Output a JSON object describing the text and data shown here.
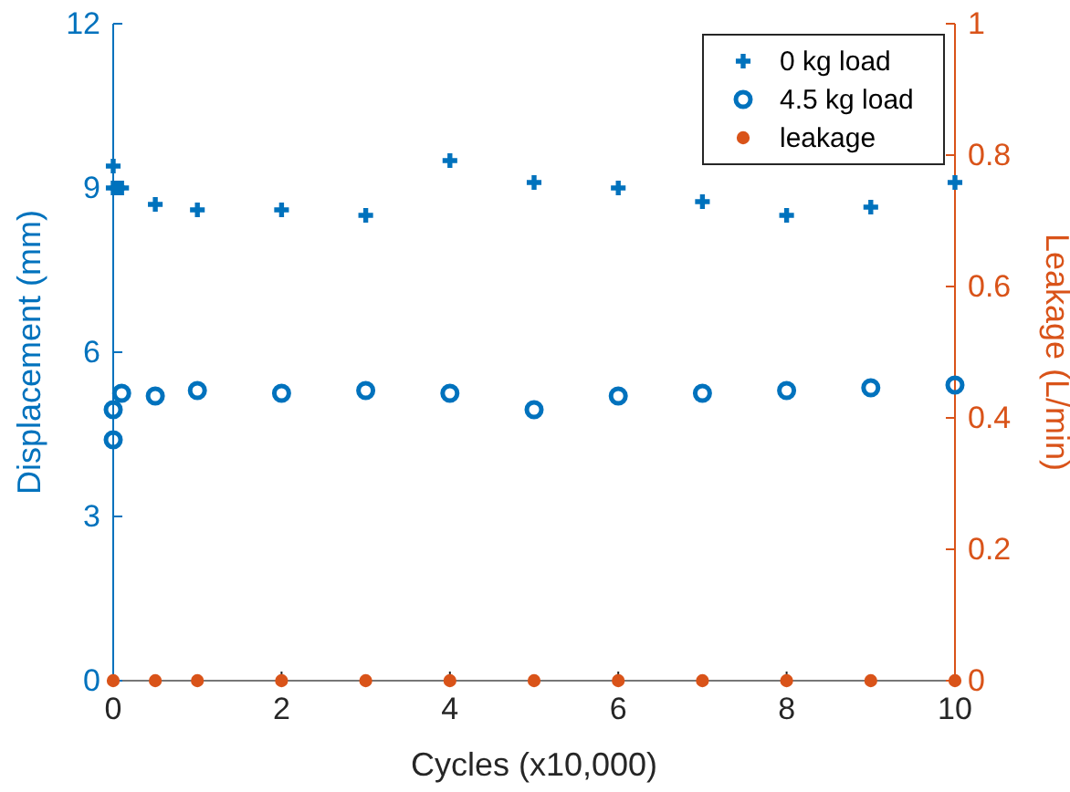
{
  "chart_data": {
    "type": "scatter",
    "xlabel": "Cycles (x10,000)",
    "ylabel": "Displacement (mm)",
    "y2label": "Leakage (L/min)",
    "xlim": [
      0,
      10
    ],
    "xticks": [
      0,
      2,
      4,
      6,
      8,
      10
    ],
    "ylim": [
      0,
      12
    ],
    "yticks": [
      0,
      3,
      6,
      9,
      12
    ],
    "y2lim": [
      0,
      1
    ],
    "y2ticks": [
      0,
      0.2,
      0.4,
      0.6,
      0.8,
      1
    ],
    "legend": "top right",
    "grid": false,
    "series": [
      {
        "name": "0 kg load",
        "color": "#0072bd",
        "marker": "cross",
        "x": [
          0,
          0,
          0.05,
          0.1,
          0.5,
          1,
          2,
          3,
          4,
          5,
          6,
          7,
          8,
          9,
          10
        ],
        "values": [
          9.4,
          9.0,
          9.0,
          9.0,
          8.7,
          8.6,
          8.6,
          8.5,
          9.5,
          9.1,
          9.0,
          8.75,
          8.5,
          8.65,
          9.1
        ]
      },
      {
        "name": "4.5 kg load",
        "color": "#0072bd",
        "marker": "circle",
        "x": [
          0,
          0,
          0.1,
          0.5,
          1,
          2,
          3,
          4,
          5,
          6,
          7,
          8,
          9,
          10
        ],
        "values": [
          4.4,
          4.95,
          5.25,
          5.2,
          5.3,
          5.25,
          5.3,
          5.25,
          4.95,
          5.2,
          5.25,
          5.3,
          5.35,
          5.4
        ]
      },
      {
        "name": "leakage",
        "color": "#d95319",
        "marker": "dot",
        "axis": "y2",
        "x": [
          0,
          0.5,
          1,
          2,
          3,
          4,
          5,
          6,
          7,
          8,
          9,
          10
        ],
        "values": [
          0,
          0,
          0,
          0,
          0,
          0,
          0,
          0,
          0,
          0,
          0,
          0
        ]
      }
    ]
  }
}
